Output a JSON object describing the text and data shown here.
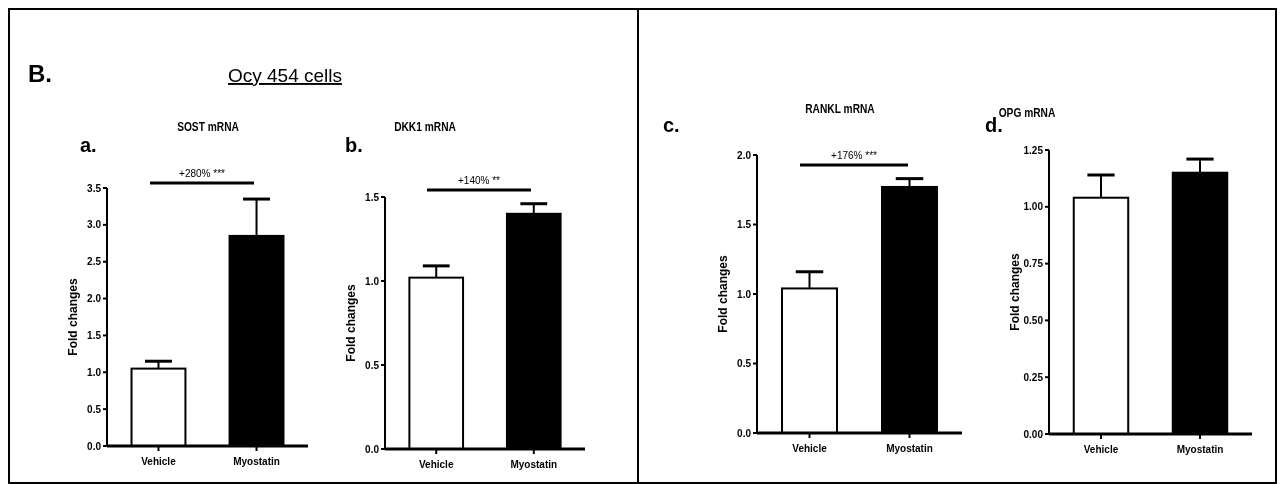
{
  "chart_data": [
    {
      "type": "bar",
      "title": "SOST mRNA",
      "ylabel": "Fold changes",
      "annotations": [
        "B.",
        "Ocy 454 cells",
        "a.",
        "+280% ***"
      ],
      "categories": [
        "Vehicle",
        "Myostatin"
      ],
      "values": [
        1.05,
        2.85
      ],
      "errors": [
        0.1,
        0.5
      ],
      "colors": [
        "#ffffff",
        "#000000"
      ],
      "ylim": [
        0,
        3.5
      ],
      "yticks": [
        {
          "value": 0,
          "label": "0.0"
        },
        0.5,
        {
          "value": 1,
          "label": "1.0"
        },
        1.5,
        {
          "value": 2,
          "label": "2.0"
        },
        2.5,
        {
          "value": 3,
          "label": "3.0"
        },
        3.5
      ]
    },
    {
      "type": "bar",
      "title": "DKK1 mRNA",
      "ylabel": "Fold changes",
      "annotations": [
        "b.",
        "+140% **"
      ],
      "categories": [
        "Vehicle",
        "Myostatin"
      ],
      "values": [
        1.02,
        1.4
      ],
      "errors": [
        0.07,
        0.06
      ],
      "colors": [
        "#ffffff",
        "#000000"
      ],
      "ylim": [
        0,
        1.5
      ],
      "yticks": [
        {
          "value": 0,
          "label": "0.0"
        },
        0.5,
        {
          "value": 1,
          "label": "1.0"
        },
        1.5
      ]
    },
    {
      "type": "bar",
      "title": "RANKL mRNA",
      "ylabel": "Fold changes",
      "annotations": [
        "c.",
        "+176% ***"
      ],
      "categories": [
        "Vehicle",
        "Myostatin"
      ],
      "values": [
        1.04,
        1.77
      ],
      "errors": [
        0.12,
        0.06
      ],
      "colors": [
        "#ffffff",
        "#000000"
      ],
      "ylim": [
        0,
        2
      ],
      "yticks": [
        {
          "value": 0,
          "label": "0.0"
        },
        0.5,
        {
          "value": 1,
          "label": "1.0"
        },
        1.5,
        {
          "value": 2,
          "label": "2.0"
        }
      ]
    },
    {
      "type": "bar",
      "title": "OPG mRNA",
      "ylabel": "Fold changes",
      "annotations": [
        "d."
      ],
      "categories": [
        "Vehicle",
        "Myostatin"
      ],
      "values": [
        1.04,
        1.15
      ],
      "errors": [
        0.1,
        0.06
      ],
      "colors": [
        "#ffffff",
        "#000000"
      ],
      "ylim": [
        0,
        1.25
      ],
      "yticks": [
        {
          "value": 0,
          "label": "0.00"
        },
        0.25,
        {
          "value": 0.5,
          "label": "0.50"
        },
        0.75,
        {
          "value": 1,
          "label": "1.00"
        },
        1.25
      ]
    }
  ]
}
